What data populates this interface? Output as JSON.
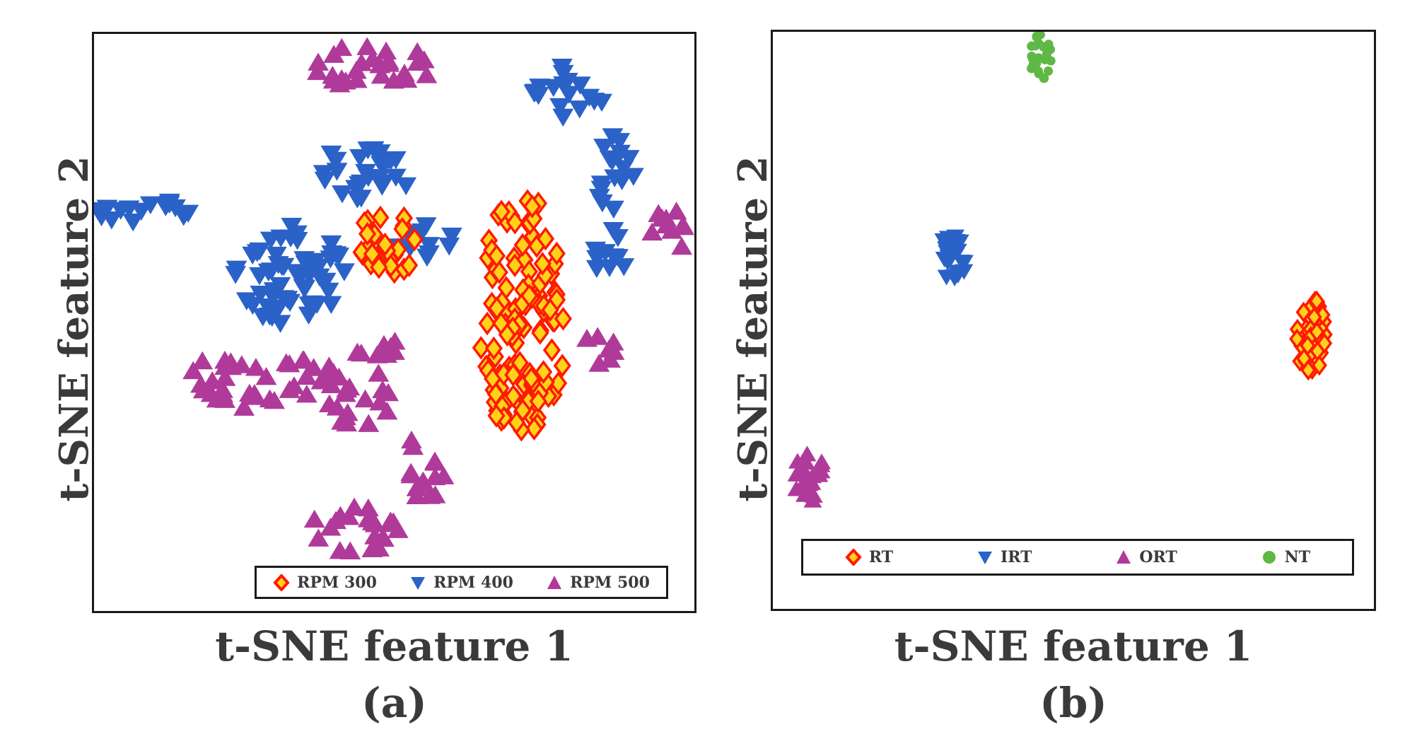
{
  "chart_data": [
    {
      "type": "scatter",
      "panel_label": "(a)",
      "xlabel": "t-SNE feature 1",
      "ylabel": "t-SNE feature 2",
      "legend_placement": "bottom-right",
      "series": [
        {
          "name": "RPM 300",
          "marker": "diamond",
          "color": "#ff1a00",
          "fill": "#ffd21a",
          "clusters": [
            {
              "cx": 0.715,
              "cy": 0.49,
              "rx": 0.075,
              "ry": 0.215,
              "n": 130
            },
            {
              "cx": 0.49,
              "cy": 0.36,
              "rx": 0.055,
              "ry": 0.055,
              "n": 26
            }
          ]
        },
        {
          "name": "RPM 400",
          "marker": "triangle-down",
          "color": "#2a62c8",
          "fill": "#2a62c8",
          "clusters": [
            {
              "cx": 0.32,
              "cy": 0.42,
              "rx": 0.1,
              "ry": 0.09,
              "n": 60
            },
            {
              "cx": 0.45,
              "cy": 0.24,
              "rx": 0.08,
              "ry": 0.05,
              "n": 28
            },
            {
              "cx": 0.08,
              "cy": 0.31,
              "rx": 0.08,
              "ry": 0.03,
              "n": 16
            },
            {
              "cx": 0.79,
              "cy": 0.1,
              "rx": 0.06,
              "ry": 0.05,
              "n": 18
            },
            {
              "cx": 0.865,
              "cy": 0.23,
              "rx": 0.035,
              "ry": 0.08,
              "n": 16
            },
            {
              "cx": 0.86,
              "cy": 0.38,
              "rx": 0.03,
              "ry": 0.05,
              "n": 10
            },
            {
              "cx": 0.55,
              "cy": 0.36,
              "rx": 0.05,
              "ry": 0.03,
              "n": 10
            }
          ]
        },
        {
          "name": "RPM 500",
          "marker": "triangle-up",
          "color": "#b03a9a",
          "fill": "#b03a9a",
          "clusters": [
            {
              "cx": 0.46,
              "cy": 0.06,
              "rx": 0.11,
              "ry": 0.04,
              "n": 26
            },
            {
              "cx": 0.26,
              "cy": 0.6,
              "rx": 0.16,
              "ry": 0.05,
              "n": 40
            },
            {
              "cx": 0.47,
              "cy": 0.54,
              "rx": 0.04,
              "ry": 0.03,
              "n": 10
            },
            {
              "cx": 0.44,
              "cy": 0.63,
              "rx": 0.06,
              "ry": 0.05,
              "n": 16
            },
            {
              "cx": 0.55,
              "cy": 0.75,
              "rx": 0.04,
              "ry": 0.06,
              "n": 14
            },
            {
              "cx": 0.43,
              "cy": 0.86,
              "rx": 0.09,
              "ry": 0.04,
              "n": 22
            },
            {
              "cx": 0.84,
              "cy": 0.55,
              "rx": 0.03,
              "ry": 0.03,
              "n": 7
            },
            {
              "cx": 0.955,
              "cy": 0.35,
              "rx": 0.03,
              "ry": 0.05,
              "n": 10
            }
          ]
        }
      ]
    },
    {
      "type": "scatter",
      "panel_label": "(b)",
      "xlabel": "t-SNE feature 1",
      "ylabel": "t-SNE feature 2",
      "legend_placement": "bottom",
      "series": [
        {
          "name": "RT",
          "marker": "diamond",
          "color": "#ff1a00",
          "fill": "#ffd21a",
          "clusters": [
            {
              "cx": 0.895,
              "cy": 0.53,
              "rx": 0.025,
              "ry": 0.07,
              "n": 40
            }
          ]
        },
        {
          "name": "IRT",
          "marker": "triangle-down",
          "color": "#2a62c8",
          "fill": "#2a62c8",
          "clusters": [
            {
              "cx": 0.3,
              "cy": 0.39,
              "rx": 0.022,
              "ry": 0.045,
              "n": 22
            }
          ]
        },
        {
          "name": "ORT",
          "marker": "triangle-up",
          "color": "#b03a9a",
          "fill": "#b03a9a",
          "clusters": [
            {
              "cx": 0.06,
              "cy": 0.775,
              "rx": 0.03,
              "ry": 0.045,
              "n": 22
            }
          ]
        },
        {
          "name": "NT",
          "marker": "circle",
          "color": "#5fb845",
          "fill": "#5fb845",
          "clusters": [
            {
              "cx": 0.445,
              "cy": 0.045,
              "rx": 0.018,
              "ry": 0.04,
              "n": 26
            }
          ]
        }
      ]
    }
  ]
}
